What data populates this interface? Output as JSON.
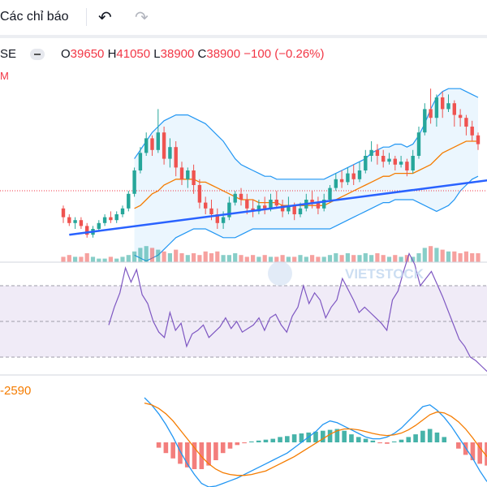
{
  "toolbar": {
    "indicators_label": "Các chỉ báo",
    "undo_icon": "undo-icon",
    "redo_icon": "redo-icon"
  },
  "legend": {
    "symbol": "SE",
    "open_key": "O",
    "open": "39650",
    "high_key": "H",
    "high": "41050",
    "low_key": "L",
    "low": "38900",
    "close_key": "C",
    "close": "38900",
    "change": "−100 (−0.26%)"
  },
  "indicator_label_m": "M",
  "macd_value": "-2590",
  "watermark": "VIETSTOCK",
  "colors": {
    "up": "#26a69a",
    "down": "#ef5350",
    "bb_line": "#2196f3",
    "bb_fill": "#e3f2fd",
    "ma": "#f57c00",
    "trendline": "#2962ff",
    "rsi": "#7e57c2",
    "rsi_band": "#ede7f6",
    "macd_line": "#2196f3",
    "signal_line": "#f57c00"
  },
  "chart_data": {
    "type": "candlestick",
    "candles": [
      [
        1,
        52,
        49,
        53,
        47
      ],
      [
        2,
        49,
        47,
        50,
        46
      ],
      [
        3,
        47,
        48,
        49,
        45
      ],
      [
        4,
        48,
        46,
        49,
        45
      ],
      [
        5,
        46,
        43,
        47,
        42
      ],
      [
        6,
        43,
        45,
        46,
        42
      ],
      [
        7,
        45,
        47,
        48,
        44
      ],
      [
        8,
        47,
        49,
        50,
        46
      ],
      [
        9,
        49,
        48,
        51,
        47
      ],
      [
        10,
        48,
        50,
        51,
        47
      ],
      [
        11,
        50,
        52,
        53,
        49
      ],
      [
        12,
        52,
        57,
        58,
        51
      ],
      [
        13,
        57,
        65,
        66,
        56
      ],
      [
        14,
        65,
        71,
        73,
        64
      ],
      [
        15,
        71,
        76,
        78,
        70
      ],
      [
        16,
        76,
        72,
        77,
        70
      ],
      [
        17,
        72,
        78,
        86,
        71
      ],
      [
        18,
        78,
        69,
        80,
        67
      ],
      [
        19,
        69,
        73,
        76,
        66
      ],
      [
        20,
        73,
        66,
        75,
        63
      ],
      [
        21,
        66,
        62,
        68,
        60
      ],
      [
        22,
        62,
        65,
        66,
        59
      ],
      [
        23,
        65,
        60,
        67,
        57
      ],
      [
        24,
        60,
        54,
        62,
        52
      ],
      [
        25,
        54,
        52,
        56,
        50
      ],
      [
        26,
        52,
        50,
        55,
        48
      ],
      [
        27,
        50,
        47,
        52,
        45
      ],
      [
        28,
        47,
        49,
        51,
        45
      ],
      [
        29,
        49,
        54,
        56,
        48
      ],
      [
        30,
        54,
        57,
        58,
        53
      ],
      [
        31,
        57,
        55,
        59,
        53
      ],
      [
        32,
        55,
        52,
        57,
        50
      ],
      [
        33,
        52,
        51,
        55,
        49
      ],
      [
        34,
        51,
        53,
        55,
        50
      ],
      [
        35,
        53,
        52,
        56,
        50
      ],
      [
        36,
        52,
        55,
        57,
        51
      ],
      [
        37,
        55,
        53,
        58,
        52
      ],
      [
        38,
        53,
        51,
        55,
        49
      ],
      [
        39,
        51,
        53,
        56,
        50
      ],
      [
        40,
        53,
        50,
        54,
        48
      ],
      [
        41,
        50,
        52,
        54,
        49
      ],
      [
        42,
        52,
        55,
        57,
        51
      ],
      [
        43,
        55,
        54,
        58,
        52
      ],
      [
        44,
        54,
        52,
        56,
        50
      ],
      [
        45,
        52,
        55,
        57,
        51
      ],
      [
        46,
        55,
        59,
        60,
        54
      ],
      [
        47,
        59,
        62,
        64,
        58
      ],
      [
        48,
        62,
        61,
        65,
        59
      ],
      [
        49,
        61,
        64,
        66,
        60
      ],
      [
        50,
        64,
        62,
        67,
        60
      ],
      [
        51,
        62,
        65,
        68,
        61
      ],
      [
        52,
        65,
        70,
        72,
        64
      ],
      [
        53,
        70,
        72,
        75,
        68
      ],
      [
        54,
        72,
        70,
        74,
        67
      ],
      [
        55,
        70,
        68,
        72,
        66
      ],
      [
        56,
        68,
        69,
        71,
        67
      ],
      [
        57,
        69,
        67,
        70,
        65
      ],
      [
        58,
        67,
        68,
        70,
        66
      ],
      [
        59,
        68,
        65,
        69,
        63
      ],
      [
        60,
        65,
        70,
        72,
        64
      ],
      [
        61,
        70,
        78,
        80,
        69
      ],
      [
        62,
        78,
        86,
        88,
        77
      ],
      [
        63,
        86,
        83,
        93,
        81
      ],
      [
        64,
        83,
        90,
        91,
        80
      ],
      [
        65,
        90,
        86,
        92,
        83
      ],
      [
        66,
        86,
        88,
        91,
        85
      ],
      [
        67,
        88,
        84,
        89,
        80
      ],
      [
        68,
        84,
        83,
        86,
        80
      ],
      [
        69,
        83,
        80,
        84,
        77
      ],
      [
        70,
        80,
        77,
        82,
        75
      ],
      [
        71,
        77,
        74,
        78,
        72
      ]
    ],
    "bollinger": {
      "upper": [
        56,
        56,
        56,
        56,
        56,
        57,
        58,
        59,
        60,
        62,
        64,
        66,
        69,
        72,
        75,
        78,
        80,
        82,
        83,
        84,
        84,
        84,
        83,
        82,
        81,
        79,
        77,
        75,
        72,
        69,
        67,
        66,
        65,
        64,
        63,
        63,
        62,
        62,
        62,
        62,
        62,
        62,
        62,
        62,
        62,
        63,
        64,
        65,
        66,
        67,
        68,
        69,
        71,
        72,
        73,
        73,
        74,
        74,
        73,
        74,
        77,
        81,
        86,
        90,
        92,
        93,
        93,
        93,
        92,
        91,
        90
      ],
      "middle": [
        52,
        51,
        50,
        49,
        49,
        49,
        49,
        49,
        49,
        49,
        49,
        50,
        52,
        53,
        55,
        57,
        58,
        60,
        61,
        62,
        62,
        62,
        62,
        61,
        61,
        60,
        59,
        58,
        57,
        56,
        55,
        55,
        55,
        54,
        54,
        54,
        54,
        53,
        53,
        53,
        53,
        53,
        53,
        53,
        53,
        54,
        55,
        56,
        57,
        58,
        59,
        60,
        61,
        62,
        63,
        63,
        64,
        64,
        64,
        64,
        65,
        66,
        67,
        69,
        71,
        72,
        73,
        74,
        75,
        75,
        75
      ],
      "lower": [
        47,
        46,
        44,
        43,
        42,
        41,
        41,
        40,
        40,
        39,
        38,
        37,
        36,
        35,
        34,
        35,
        36,
        38,
        40,
        42,
        43,
        44,
        45,
        45,
        45,
        44,
        43,
        42,
        42,
        42,
        43,
        44,
        45,
        45,
        45,
        45,
        45,
        45,
        45,
        45,
        45,
        45,
        45,
        45,
        45,
        45,
        46,
        47,
        48,
        49,
        50,
        51,
        52,
        53,
        54,
        54,
        55,
        55,
        55,
        55,
        54,
        53,
        52,
        51,
        52,
        53,
        55,
        58,
        60,
        62,
        63
      ]
    },
    "trendline": {
      "from": [
        2,
        43
      ],
      "to": [
        72,
        64
      ]
    },
    "volume": [
      3,
      4,
      3,
      3,
      5,
      3,
      2,
      2,
      3,
      2,
      3,
      4,
      6,
      8,
      9,
      8,
      7,
      6,
      5,
      7,
      5,
      4,
      5,
      4,
      6,
      5,
      6,
      4,
      4,
      5,
      4,
      3,
      4,
      3,
      4,
      3,
      3,
      4,
      3,
      3,
      4,
      3,
      4,
      3,
      3,
      4,
      5,
      4,
      5,
      4,
      4,
      5,
      4,
      5,
      4,
      3,
      4,
      3,
      4,
      3,
      5,
      8,
      9,
      8,
      7,
      6,
      6,
      5,
      6,
      5,
      5
    ],
    "rsi": {
      "ylim": [
        0,
        100
      ],
      "levels": [
        70,
        50,
        30
      ],
      "values": [
        48,
        58,
        66,
        80,
        72,
        79,
        65,
        60,
        50,
        44,
        41,
        55,
        45,
        49,
        36,
        43,
        45,
        48,
        41,
        44,
        47,
        52,
        46,
        50,
        44,
        46,
        48,
        52,
        45,
        52,
        54,
        48,
        44,
        53,
        58,
        70,
        60,
        66,
        62,
        52,
        58,
        62,
        74,
        68,
        62,
        55,
        58,
        55,
        52,
        49,
        45,
        62,
        67,
        78,
        88,
        82,
        70,
        74,
        78,
        71,
        64,
        56,
        48,
        40,
        36,
        30,
        28,
        25,
        22
      ]
    },
    "macd": {
      "ylim": [
        -5000,
        3000
      ],
      "macd": [
        2500,
        2100,
        1600,
        1000,
        300,
        -500,
        -1200,
        -1800,
        -2300,
        -2500,
        -2450,
        -2300,
        -2150,
        -2000,
        -1800,
        -1600,
        -1400,
        -1200,
        -1000,
        -800,
        -600,
        -300,
        0,
        300,
        600,
        1000,
        1200,
        1100,
        900,
        700,
        500,
        300,
        200,
        200,
        300,
        500,
        800,
        1200,
        1600,
        2000,
        2100,
        1800,
        1400,
        900,
        300,
        -300,
        -900,
        -1600,
        -2200
      ],
      "signal": [
        2200,
        2100,
        1900,
        1600,
        1200,
        700,
        200,
        -300,
        -800,
        -1200,
        -1500,
        -1700,
        -1800,
        -1850,
        -1850,
        -1800,
        -1700,
        -1600,
        -1400,
        -1200,
        -1000,
        -800,
        -550,
        -300,
        -50,
        200,
        450,
        650,
        750,
        750,
        700,
        600,
        500,
        420,
        380,
        420,
        520,
        700,
        950,
        1250,
        1550,
        1700,
        1650,
        1450,
        1150,
        750,
        250,
        -300,
        -800
      ],
      "histogram": [
        0,
        0,
        -300,
        -600,
        -900,
        -1200,
        -1400,
        -1500,
        -1500,
        -1300,
        -1000,
        -600,
        -350,
        -150,
        -50,
        50,
        100,
        150,
        200,
        300,
        350,
        450,
        500,
        550,
        600,
        650,
        700,
        750,
        650,
        450,
        300,
        200,
        100,
        -50,
        -80,
        50,
        150,
        300,
        450,
        650,
        750,
        550,
        300,
        0,
        -350,
        -700,
        -1000,
        -1200,
        -1300
      ]
    }
  }
}
